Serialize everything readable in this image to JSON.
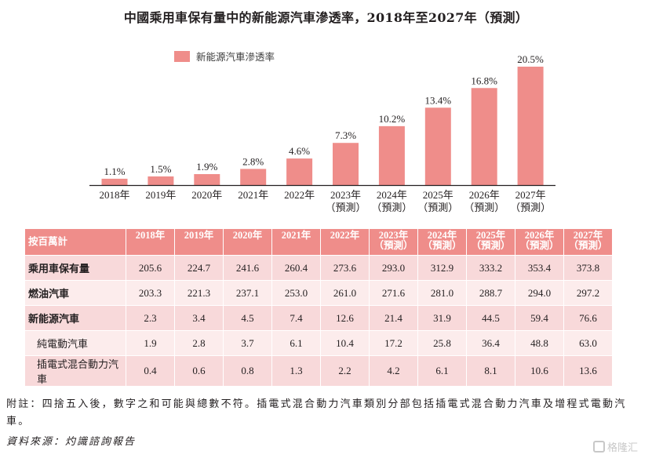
{
  "chart_data": {
    "type": "bar",
    "title": "中國乘用車保有量中的新能源汽車滲透率，2018年至2027年（預測）",
    "legend": {
      "entries": [
        "新能源汽車滲透率"
      ],
      "placement": "top-left"
    },
    "categories": [
      "2018年",
      "2019年",
      "2020年",
      "2021年",
      "2022年",
      "2023年",
      "2024年",
      "2025年",
      "2026年",
      "2027年"
    ],
    "category_sublabels": [
      "",
      "",
      "",
      "",
      "",
      "（預測）",
      "（預測）",
      "（預測）",
      "（預測）",
      "（預測）"
    ],
    "series": [
      {
        "name": "新能源汽車滲透率",
        "unit": "%",
        "color": "#ef8d8a",
        "values": [
          1.1,
          1.5,
          1.9,
          2.8,
          4.6,
          7.3,
          10.2,
          13.4,
          16.8,
          20.5
        ],
        "data_labels": [
          "1.1%",
          "1.5%",
          "1.9%",
          "2.8%",
          "4.6%",
          "7.3%",
          "10.2%",
          "13.4%",
          "16.8%",
          "20.5%"
        ]
      }
    ],
    "xlabel": "",
    "ylabel": "",
    "ylim": [
      0,
      20.5
    ],
    "grid": false
  },
  "table": {
    "unit_label": "按百萬計",
    "columns": [
      {
        "year": "2018年",
        "sub": ""
      },
      {
        "year": "2019年",
        "sub": ""
      },
      {
        "year": "2020年",
        "sub": ""
      },
      {
        "year": "2021年",
        "sub": ""
      },
      {
        "year": "2022年",
        "sub": ""
      },
      {
        "year": "2023年",
        "sub": "（預測）"
      },
      {
        "year": "2024年",
        "sub": "（預測）"
      },
      {
        "year": "2025年",
        "sub": "（預測）"
      },
      {
        "year": "2026年",
        "sub": "（預測）"
      },
      {
        "year": "2027年",
        "sub": "（預測）"
      }
    ],
    "rows": [
      {
        "label": "乘用車保有量",
        "values": [
          "205.6",
          "224.7",
          "241.6",
          "260.4",
          "273.6",
          "293.0",
          "312.9",
          "333.2",
          "353.4",
          "373.8"
        ]
      },
      {
        "label": "燃油汽車",
        "values": [
          "203.3",
          "221.3",
          "237.1",
          "253.0",
          "261.0",
          "271.6",
          "281.0",
          "288.7",
          "294.0",
          "297.2"
        ]
      },
      {
        "label": "新能源汽車",
        "values": [
          "2.3",
          "3.4",
          "4.5",
          "7.4",
          "12.6",
          "21.4",
          "31.9",
          "44.5",
          "59.4",
          "76.6"
        ]
      },
      {
        "label": "純電動汽車",
        "values": [
          "1.9",
          "2.8",
          "3.7",
          "6.1",
          "10.4",
          "17.2",
          "25.8",
          "36.4",
          "48.8",
          "63.0"
        ]
      },
      {
        "label": "插電式混合動力汽車",
        "values": [
          "0.4",
          "0.6",
          "0.8",
          "1.3",
          "2.2",
          "4.2",
          "6.1",
          "8.1",
          "10.6",
          "13.6"
        ]
      }
    ]
  },
  "footer": {
    "note": "附註：四捨五入後，數字之和可能與總數不符。插電式混合動力汽車類別分部包括插電式混合動力汽車及增程式電動汽車。",
    "source": "資料來源：灼識諮詢報告"
  },
  "watermark": {
    "text": "格隆汇",
    "icon": "gelonghui-logo-icon"
  }
}
